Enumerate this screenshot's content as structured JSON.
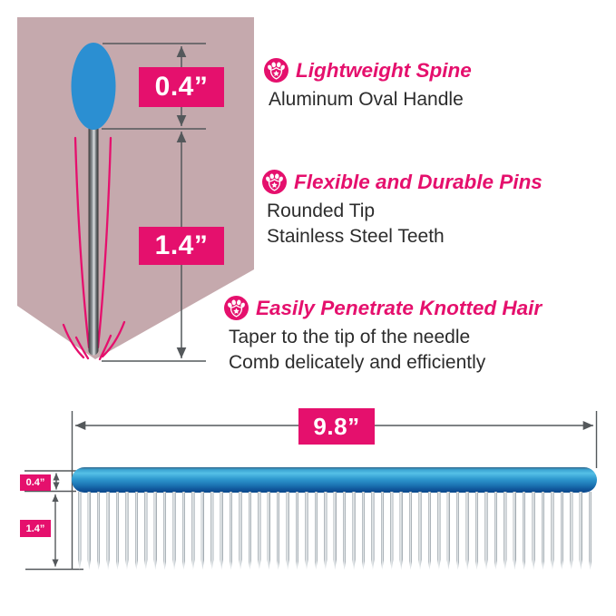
{
  "colors": {
    "accent": "#e5106d",
    "mauve": "#c5a9ad",
    "oval-blue": "#2b8fd2",
    "line-gray": "#54585b",
    "text-dark": "#2c2c2c"
  },
  "pin_diagram": {
    "tip_height_label": "0.4”",
    "pin_length_label": "1.4”"
  },
  "features": [
    {
      "title": "Lightweight Spine",
      "lines": [
        "Aluminum Oval Handle"
      ]
    },
    {
      "title": "Flexible and Durable Pins",
      "lines": [
        "Rounded Tip",
        "Stainless Steel Teeth"
      ]
    },
    {
      "title": "Easily Penetrate Knotted Hair",
      "lines": [
        "Taper to the tip of the needle",
        "Comb delicately and efficiently"
      ]
    }
  ],
  "comb": {
    "width_label": "9.8”",
    "spine_height_label": "0.4”",
    "pin_length_label": "1.4”",
    "pin_count": 55
  },
  "icons": {
    "paw_badge": "paw-badge-icon"
  }
}
